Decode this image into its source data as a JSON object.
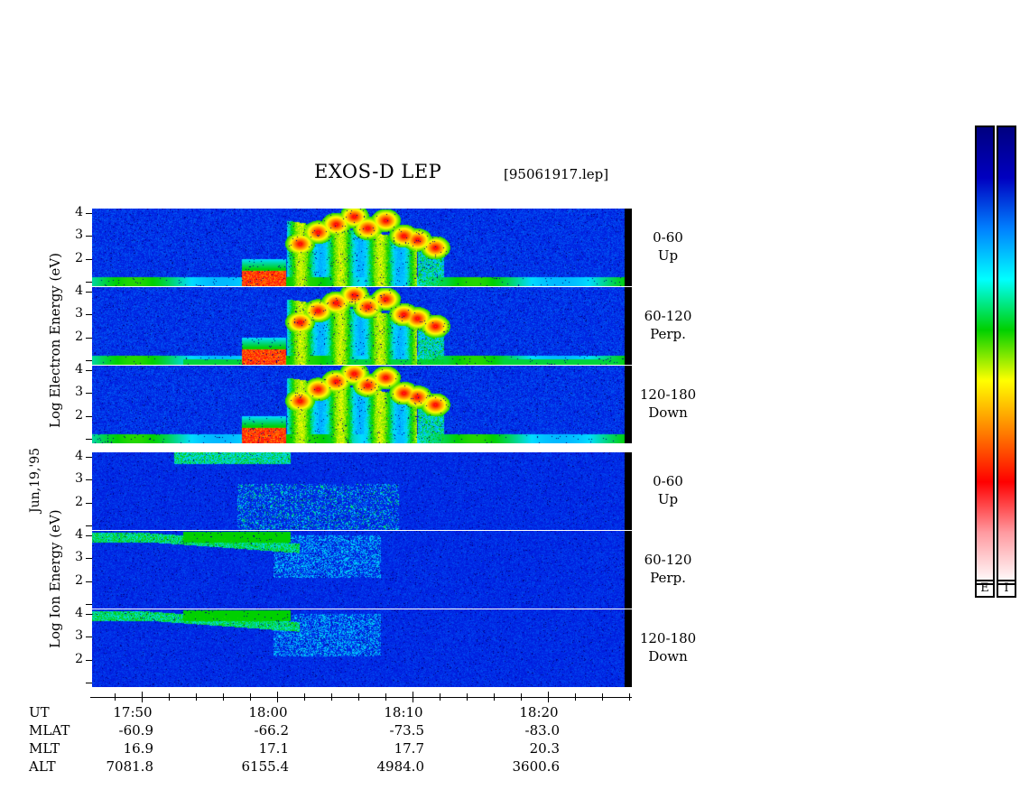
{
  "chart_data": {
    "type": "heatmap",
    "title": "EXOS-D LEP",
    "file_label": "[95061917.lep]",
    "date_label": "Jun,19,'95",
    "x_ticks": [
      "17:50",
      "18:00",
      "18:10",
      "18:20"
    ],
    "y_ticks": [
      "1",
      "2",
      "3",
      "4"
    ],
    "electron_ylabel": "Log  Electron  Energy  (eV)",
    "ion_ylabel": "Log  Ion  Energy  (eV)",
    "panels": [
      {
        "group": "electron",
        "angle": "0-60",
        "direction": "Up"
      },
      {
        "group": "electron",
        "angle": "60-120",
        "direction": "Perp."
      },
      {
        "group": "electron",
        "angle": "120-180",
        "direction": "Down"
      },
      {
        "group": "ion",
        "angle": "0-60",
        "direction": "Up"
      },
      {
        "group": "ion",
        "angle": "60-120",
        "direction": "Perp."
      },
      {
        "group": "ion",
        "angle": "120-180",
        "direction": "Down"
      }
    ],
    "ephemeris": {
      "labels": [
        "UT",
        "MLAT",
        "MLT",
        "ALT"
      ],
      "columns": [
        {
          "UT": "17:50",
          "MLAT": "-60.9",
          "MLT": "16.9",
          "ALT": "7081.8"
        },
        {
          "UT": "18:00",
          "MLAT": "-66.2",
          "MLT": "17.1",
          "ALT": "6155.4"
        },
        {
          "UT": "18:10",
          "MLAT": "-73.5",
          "MLT": "17.7",
          "ALT": "4984.0"
        },
        {
          "UT": "18:20",
          "MLAT": "-83.0",
          "MLT": "20.3",
          "ALT": "3600.6"
        }
      ]
    },
    "colorbars": [
      {
        "label": "E"
      },
      {
        "label": "I"
      }
    ],
    "colorscale": [
      "#ffffff",
      "#ff9aa0",
      "#ff0000",
      "#ff8000",
      "#ffff00",
      "#00d000",
      "#00ffff",
      "#0080ff",
      "#0000c0",
      "#000080"
    ]
  }
}
